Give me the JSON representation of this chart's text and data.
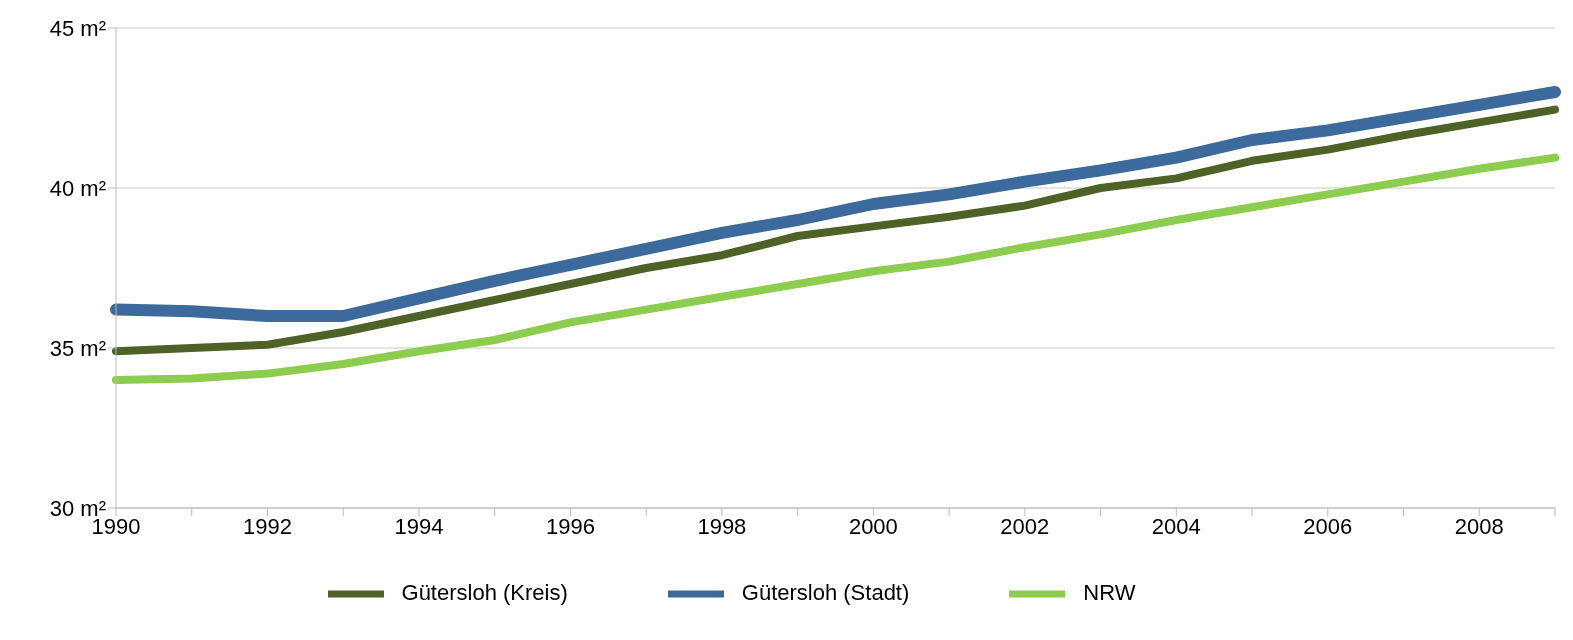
{
  "chart_data": {
    "type": "line",
    "categories": [
      "1990",
      null,
      "1992",
      null,
      "1994",
      null,
      "1996",
      null,
      "1998",
      null,
      "2000",
      null,
      "2002",
      null,
      "2004",
      null,
      "2006",
      null,
      "2008",
      null
    ],
    "series": [
      {
        "name": "Gütersloh (Stadt)",
        "color": "#3d6a9c",
        "values": [
          36.2,
          36.15,
          36.0,
          36.0,
          36.55,
          37.1,
          37.6,
          38.1,
          38.6,
          39.0,
          39.5,
          39.8,
          40.2,
          40.55,
          40.95,
          41.5,
          41.8,
          42.2,
          42.6,
          43.0
        ]
      },
      {
        "name": "Gütersloh (Kreis)",
        "color": "#4e6127",
        "values": [
          34.9,
          35.0,
          35.1,
          35.5,
          36.0,
          36.5,
          37.0,
          37.5,
          37.9,
          38.5,
          38.8,
          39.1,
          39.45,
          40.0,
          40.3,
          40.85,
          41.2,
          41.65,
          42.05,
          42.45
        ]
      },
      {
        "name": "NRW",
        "color": "#8ccc4e",
        "values": [
          34.0,
          34.05,
          34.2,
          34.5,
          34.9,
          35.25,
          35.8,
          36.2,
          36.6,
          37.0,
          37.4,
          37.7,
          38.15,
          38.55,
          39.0,
          39.4,
          39.8,
          40.2,
          40.6,
          40.95
        ]
      }
    ],
    "ylim": [
      30,
      45
    ],
    "yticks": [
      {
        "value": 30,
        "label": "30 m²"
      },
      {
        "value": 35,
        "label": "35 m²"
      },
      {
        "value": 40,
        "label": "40 m²"
      },
      {
        "value": 45,
        "label": "45 m²"
      }
    ],
    "grid": "y",
    "legend": "bottom",
    "marker": "none",
    "line_style": "solid"
  }
}
